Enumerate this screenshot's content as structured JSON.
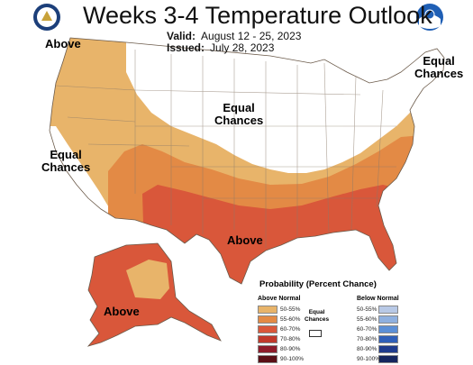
{
  "header": {
    "title": "Weeks 3-4 Temperature Outlook",
    "valid_label": "Valid:",
    "valid_value": "August 12 - 25, 2023",
    "issued_label": "Issued:",
    "issued_value": "July 28, 2023"
  },
  "map_labels": {
    "above_northwest": "Above",
    "equal_north_1": "Equal",
    "equal_north_2": "Chances",
    "equal_northeast_1": "Equal",
    "equal_northeast_2": "Chances",
    "equal_west_1": "Equal",
    "equal_west_2": "Chances",
    "above_south": "Above",
    "above_alaska": "Above"
  },
  "legend": {
    "title": "Probability (Percent Chance)",
    "above_title": "Above Normal",
    "below_title": "Below Normal",
    "equal_label_1": "Equal",
    "equal_label_2": "Chances",
    "above_items": [
      {
        "label": "50-55%",
        "color": "#e8b46a"
      },
      {
        "label": "55-60%",
        "color": "#e38a45"
      },
      {
        "label": "60-70%",
        "color": "#d9573a"
      },
      {
        "label": "70-80%",
        "color": "#c0392b"
      },
      {
        "label": "80-90%",
        "color": "#8e1c2a"
      },
      {
        "label": "90-100%",
        "color": "#5a0f16"
      }
    ],
    "below_items": [
      {
        "label": "50-55%",
        "color": "#b8c9e6"
      },
      {
        "label": "55-60%",
        "color": "#8fb0df"
      },
      {
        "label": "60-70%",
        "color": "#5b8fd6"
      },
      {
        "label": "70-80%",
        "color": "#2f5fb8"
      },
      {
        "label": "80-90%",
        "color": "#1f3b8c"
      },
      {
        "label": "90-100%",
        "color": "#15265e"
      }
    ]
  },
  "colors": {
    "equal": "#ffffff",
    "above_50_55": "#e8b46a",
    "above_55_60": "#e38a45",
    "above_60_70": "#d9573a",
    "border": "#8a7a6a"
  },
  "logos": {
    "left": "doc-seal-icon",
    "right": "noaa-logo-icon"
  }
}
